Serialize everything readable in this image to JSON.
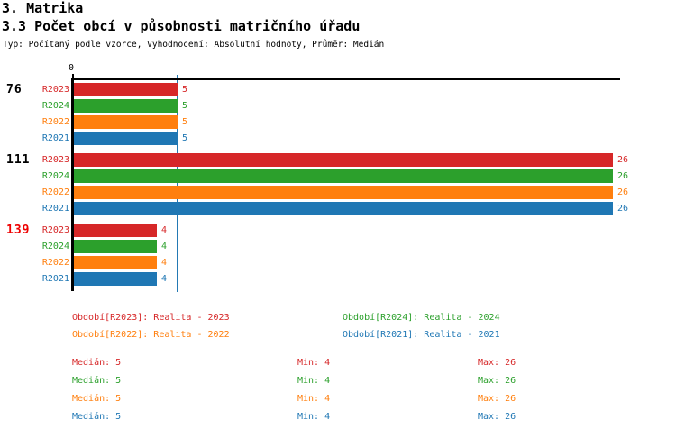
{
  "header": {
    "title": "3. Matrika",
    "subtitle": "3.3 Počet obcí v působnosti matričního úřadu",
    "meta": "Typ: Počítaný podle vzorce, Vyhodnocení: Absolutní hodnoty, Průměr: Medián"
  },
  "colors": {
    "r2023": "#d62728",
    "r2024": "#2ca02c",
    "r2022": "#ff7f0e",
    "r2021": "#1f77b4",
    "median_line": "#2379b4",
    "axis": "#000000",
    "highlight_group_label": "#ee0000",
    "normal_group_label": "#000000"
  },
  "chart_data": {
    "type": "bar",
    "orientation": "horizontal",
    "title": "3.3 Počet obcí v působnosti matričního úřadu",
    "x_axis": {
      "zero_label": "0",
      "min": 0,
      "max": 26,
      "gridlines": false
    },
    "groups": [
      "76",
      "111",
      "139"
    ],
    "group_label_colors": [
      "#000000",
      "#000000",
      "#ee0000"
    ],
    "series": [
      {
        "name": "R2023",
        "color": "#d62728",
        "values": [
          5,
          26,
          4
        ]
      },
      {
        "name": "R2024",
        "color": "#2ca02c",
        "values": [
          5,
          26,
          4
        ]
      },
      {
        "name": "R2022",
        "color": "#ff7f0e",
        "values": [
          5,
          26,
          4
        ]
      },
      {
        "name": "R2021",
        "color": "#1f77b4",
        "values": [
          5,
          26,
          4
        ]
      }
    ],
    "median_value": 5
  },
  "legend": {
    "items": [
      {
        "text": "Období[R2023]: Realita - 2023",
        "color": "#d62728"
      },
      {
        "text": "Období[R2024]: Realita - 2024",
        "color": "#2ca02c"
      },
      {
        "text": "Období[R2022]: Realita - 2022",
        "color": "#ff7f0e"
      },
      {
        "text": "Období[R2021]: Realita - 2021",
        "color": "#1f77b4"
      }
    ]
  },
  "stats": {
    "rows": [
      {
        "series": "R2023",
        "color": "#d62728",
        "median_label": "Medián: 5",
        "min_label": "Min: 4",
        "max_label": "Max: 26"
      },
      {
        "series": "R2024",
        "color": "#2ca02c",
        "median_label": "Medián: 5",
        "min_label": "Min: 4",
        "max_label": "Max: 26"
      },
      {
        "series": "R2022",
        "color": "#ff7f0e",
        "median_label": "Medián: 5",
        "min_label": "Min: 4",
        "max_label": "Max: 26"
      },
      {
        "series": "R2021",
        "color": "#1f77b4",
        "median_label": "Medián: 5",
        "min_label": "Min: 4",
        "max_label": "Max: 26"
      }
    ]
  }
}
